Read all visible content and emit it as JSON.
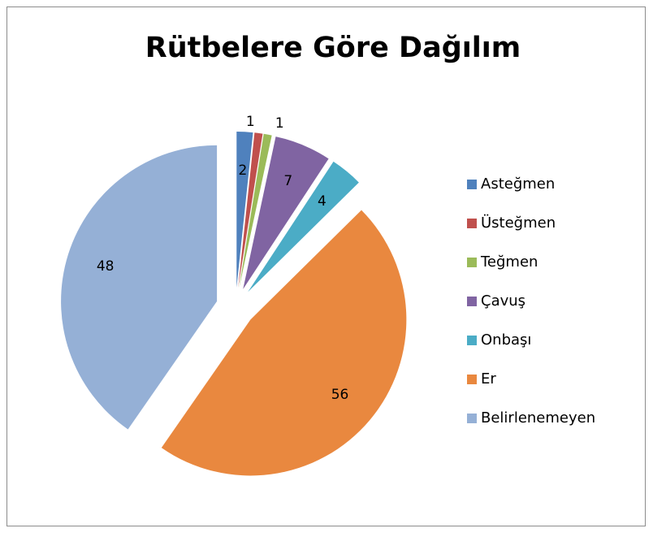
{
  "chart_data": {
    "type": "pie",
    "title": "Rütbelere Göre Dağılım",
    "categories": [
      "Asteğmen",
      "Üsteğmen",
      "Teğmen",
      "Çavuş",
      "Onbaşı",
      "Er",
      "Belirlenemeyen"
    ],
    "values": [
      2,
      1,
      1,
      7,
      4,
      56,
      48
    ],
    "colors": [
      "#4f81bd",
      "#c0504d",
      "#9bbb59",
      "#8064a2",
      "#4bacc6",
      "#e9883f",
      "#95b0d6"
    ],
    "legend": "right"
  }
}
